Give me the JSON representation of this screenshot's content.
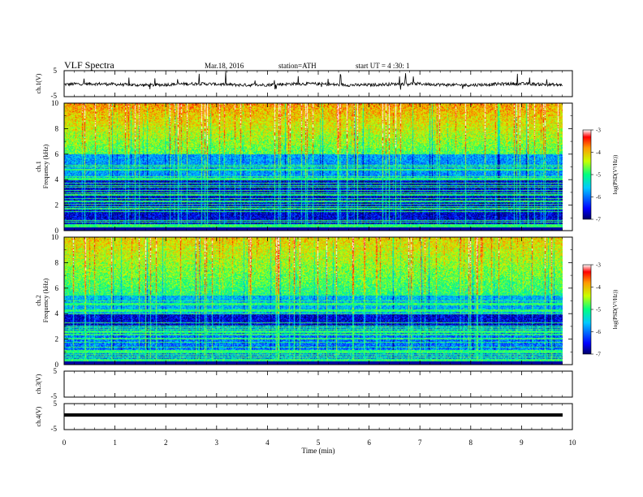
{
  "header": {
    "title": "VLF Spectra",
    "date": "Mar.18, 2016",
    "station": "station=ATH",
    "start_ut": "start UT =  4 :30: 1"
  },
  "chart_data": [
    {
      "type": "line",
      "name": "ch1-waveform",
      "ylabel": "ch.1(V)",
      "ylim": [
        -5,
        5
      ],
      "yticks": [
        "5",
        "-5"
      ],
      "xlim": [
        0,
        10
      ],
      "baseline": -0.3
    },
    {
      "type": "heatmap",
      "name": "ch1-spectrogram",
      "ylabel_channel": "ch.1",
      "ylabel": "Frequency (kHz)",
      "ylim": [
        0,
        10
      ],
      "yticks": [
        "0",
        "2",
        "4",
        "6",
        "8",
        "10"
      ],
      "xlim": [
        0,
        9.8
      ],
      "colorbar": {
        "label": "log(PSD(V²/Hz))",
        "range": [
          -7,
          -3
        ],
        "ticks": [
          "-3",
          "-4",
          "-5",
          "-6",
          "-7"
        ]
      }
    },
    {
      "type": "heatmap",
      "name": "ch2-spectrogram",
      "ylabel_channel": "ch.2",
      "ylabel": "Frequency (kHz)",
      "ylim": [
        0,
        10
      ],
      "yticks": [
        "0",
        "2",
        "4",
        "6",
        "8",
        "10"
      ],
      "xlim": [
        0,
        9.8
      ],
      "colorbar": {
        "label": "log(PSD(V²/Hz))",
        "range": [
          -7,
          -3
        ],
        "ticks": [
          "-3",
          "-4",
          "-5",
          "-6",
          "-7"
        ]
      }
    },
    {
      "type": "line",
      "name": "ch3-waveform",
      "ylabel": "ch.3(V)",
      "ylim": [
        -5,
        5
      ],
      "yticks": [
        "5",
        "-5"
      ],
      "xlim": [
        0,
        10
      ],
      "baseline": 5
    },
    {
      "type": "line",
      "name": "ch4-waveform",
      "ylabel": "ch.4(V)",
      "ylim": [
        -5,
        5
      ],
      "yticks": [
        "5",
        "-5"
      ],
      "xlim": [
        0,
        10
      ],
      "baseline": 0
    }
  ],
  "xaxis": {
    "label": "Time (min)",
    "ticks": [
      "0",
      "1",
      "2",
      "3",
      "4",
      "5",
      "6",
      "7",
      "8",
      "9",
      "10"
    ]
  }
}
